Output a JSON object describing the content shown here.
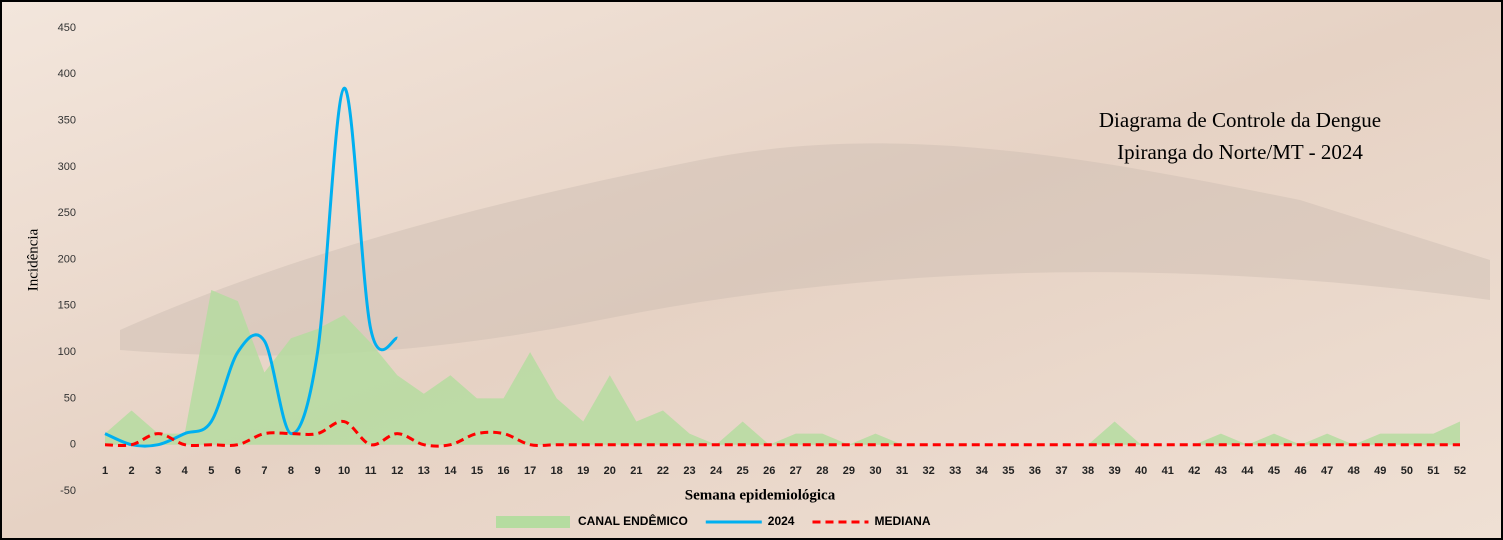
{
  "chart_data": {
    "type": "area_line",
    "title_lines": [
      "Diagrama de Controle da Dengue",
      "Ipiranga do Norte/MT - 2024"
    ],
    "xlabel": "Semana epidemiológica",
    "ylabel": "Incidência",
    "categories": [
      1,
      2,
      3,
      4,
      5,
      6,
      7,
      8,
      9,
      10,
      11,
      12,
      13,
      14,
      15,
      16,
      17,
      18,
      19,
      20,
      21,
      22,
      23,
      24,
      25,
      26,
      27,
      28,
      29,
      30,
      31,
      32,
      33,
      34,
      35,
      36,
      37,
      38,
      39,
      40,
      41,
      42,
      43,
      44,
      45,
      46,
      47,
      48,
      49,
      50,
      51,
      52
    ],
    "ylim": [
      -50,
      450
    ],
    "yticks": [
      -50,
      0,
      50,
      100,
      150,
      200,
      250,
      300,
      350,
      400,
      450
    ],
    "series": [
      {
        "name": "CANAL ENDÊMICO",
        "kind": "area",
        "color": "#b5dca0",
        "values": [
          12,
          37,
          12,
          12,
          167,
          155,
          78,
          115,
          125,
          140,
          110,
          75,
          55,
          75,
          50,
          50,
          100,
          50,
          25,
          75,
          25,
          37,
          12,
          0,
          25,
          0,
          12,
          12,
          0,
          12,
          0,
          0,
          0,
          0,
          0,
          0,
          0,
          0,
          25,
          0,
          0,
          0,
          12,
          0,
          12,
          0,
          12,
          0,
          12,
          12,
          12,
          25
        ]
      },
      {
        "name": "2024",
        "kind": "line",
        "color": "#00b0f0",
        "dash": false,
        "values": [
          12,
          0,
          0,
          12,
          25,
          100,
          112,
          12,
          100,
          385,
          125,
          115,
          null,
          null,
          null,
          null,
          null,
          null,
          null,
          null,
          null,
          null,
          null,
          null,
          null,
          null,
          null,
          null,
          null,
          null,
          null,
          null,
          null,
          null,
          null,
          null,
          null,
          null,
          null,
          null,
          null,
          null,
          null,
          null,
          null,
          null,
          null,
          null,
          null,
          null,
          null,
          null
        ]
      },
      {
        "name": "MEDIANA",
        "kind": "line",
        "color": "#ff0000",
        "dash": true,
        "values": [
          0,
          0,
          12,
          0,
          0,
          0,
          12,
          12,
          12,
          25,
          0,
          12,
          0,
          0,
          12,
          12,
          0,
          0,
          0,
          0,
          0,
          0,
          0,
          0,
          0,
          0,
          0,
          0,
          0,
          0,
          0,
          0,
          0,
          0,
          0,
          0,
          0,
          0,
          0,
          0,
          0,
          0,
          0,
          0,
          0,
          0,
          0,
          0,
          0,
          0,
          0,
          0
        ]
      }
    ]
  }
}
